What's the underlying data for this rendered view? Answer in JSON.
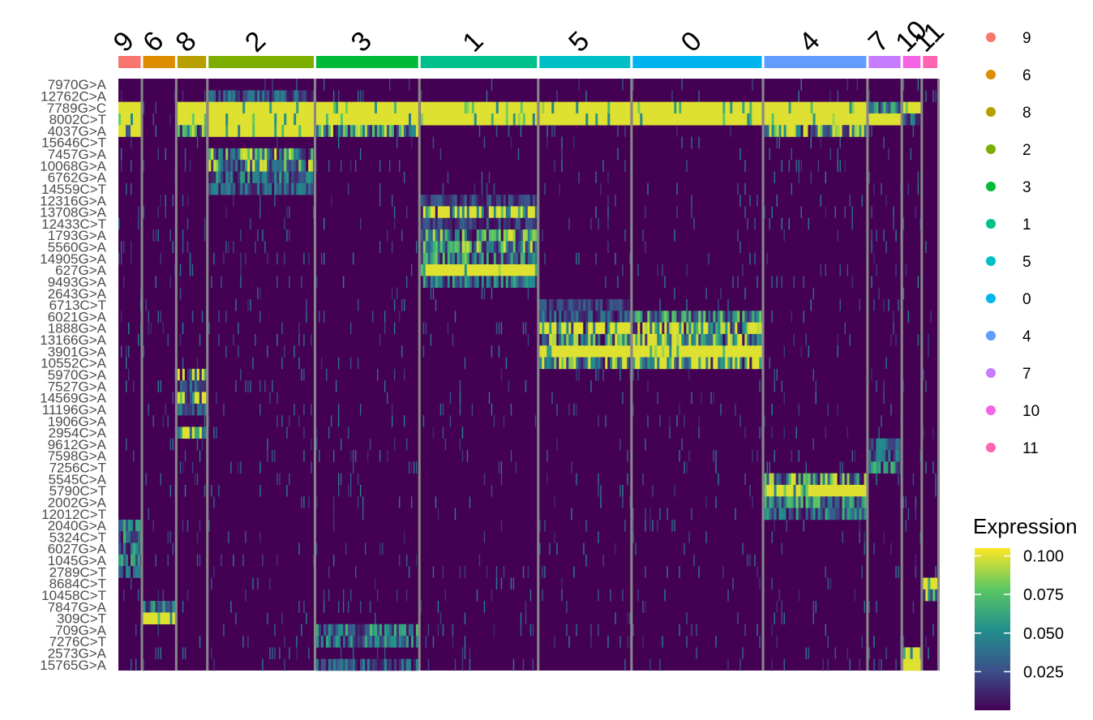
{
  "chart_data": {
    "type": "heatmap",
    "title": "",
    "xlabel": "",
    "ylabel": "",
    "clusters": [
      {
        "id": "9",
        "color": "#F8766D",
        "n": 28
      },
      {
        "id": "6",
        "color": "#DE8C00",
        "n": 40
      },
      {
        "id": "8",
        "color": "#B79F00",
        "n": 36
      },
      {
        "id": "2",
        "color": "#7CAE00",
        "n": 132
      },
      {
        "id": "3",
        "color": "#00BA38",
        "n": 128
      },
      {
        "id": "1",
        "color": "#00C08B",
        "n": 146
      },
      {
        "id": "5",
        "color": "#00BFC4",
        "n": 114
      },
      {
        "id": "0",
        "color": "#00B4F0",
        "n": 162
      },
      {
        "id": "4",
        "color": "#619CFF",
        "n": 128
      },
      {
        "id": "7",
        "color": "#C77CFF",
        "n": 40
      },
      {
        "id": "10",
        "color": "#F564E3",
        "n": 22
      },
      {
        "id": "11",
        "color": "#FF64B0",
        "n": 18
      }
    ],
    "features": [
      "7970G>A",
      "12762C>A",
      "7789G>C",
      "8002C>T",
      "4037G>A",
      "15646C>T",
      "7457G>A",
      "10068G>A",
      "6762G>A",
      "14559C>T",
      "12316G>A",
      "13708G>A",
      "12433C>T",
      "1793G>A",
      "5560G>A",
      "14905G>A",
      "627G>A",
      "9493G>A",
      "2643G>A",
      "6713C>T",
      "6021G>A",
      "1888G>A",
      "13166G>A",
      "3901G>A",
      "10552C>A",
      "5970G>A",
      "7527G>A",
      "14569G>A",
      "11196G>A",
      "1906G>A",
      "2954C>A",
      "9612G>A",
      "7598G>A",
      "7256C>T",
      "5545C>A",
      "5790C>T",
      "2002G>A",
      "12012C>T",
      "2040G>A",
      "5324C>T",
      "6027G>A",
      "1045G>A",
      "2789C>T",
      "8684C>T",
      "10458C>T",
      "7847G>A",
      "309C>T",
      "709G>A",
      "7276C>T",
      "2573G>A",
      "15765G>A"
    ],
    "blocks": [
      {
        "row": 2,
        "cluster": "9",
        "level": 0.1
      },
      {
        "row": 3,
        "cluster": "9",
        "level": 0.1
      },
      {
        "row": 4,
        "cluster": "9",
        "level": 0.09
      },
      {
        "row": 38,
        "cluster": "9",
        "level": 0.04
      },
      {
        "row": 39,
        "cluster": "9",
        "level": 0.05
      },
      {
        "row": 40,
        "cluster": "9",
        "level": 0.04
      },
      {
        "row": 41,
        "cluster": "9",
        "level": 0.04
      },
      {
        "row": 42,
        "cluster": "9",
        "level": 0.03
      },
      {
        "row": 45,
        "cluster": "6",
        "level": 0.04
      },
      {
        "row": 46,
        "cluster": "6",
        "level": 0.1
      },
      {
        "row": 2,
        "cluster": "8",
        "level": 0.1
      },
      {
        "row": 3,
        "cluster": "8",
        "level": 0.1
      },
      {
        "row": 4,
        "cluster": "8",
        "level": 0.06
      },
      {
        "row": 25,
        "cluster": "8",
        "level": 0.09
      },
      {
        "row": 26,
        "cluster": "8",
        "level": 0.03
      },
      {
        "row": 27,
        "cluster": "8",
        "level": 0.09
      },
      {
        "row": 28,
        "cluster": "8",
        "level": 0.03
      },
      {
        "row": 30,
        "cluster": "8",
        "level": 0.09
      },
      {
        "row": 1,
        "cluster": "2",
        "level": 0.03
      },
      {
        "row": 2,
        "cluster": "2",
        "level": 0.1
      },
      {
        "row": 3,
        "cluster": "2",
        "level": 0.1
      },
      {
        "row": 4,
        "cluster": "2",
        "level": 0.1
      },
      {
        "row": 6,
        "cluster": "2",
        "level": 0.06
      },
      {
        "row": 7,
        "cluster": "2",
        "level": 0.07
      },
      {
        "row": 8,
        "cluster": "2",
        "level": 0.04
      },
      {
        "row": 9,
        "cluster": "2",
        "level": 0.03
      },
      {
        "row": 2,
        "cluster": "3",
        "level": 0.1
      },
      {
        "row": 3,
        "cluster": "3",
        "level": 0.1
      },
      {
        "row": 4,
        "cluster": "3",
        "level": 0.06
      },
      {
        "row": 47,
        "cluster": "3",
        "level": 0.045
      },
      {
        "row": 48,
        "cluster": "3",
        "level": 0.04
      },
      {
        "row": 50,
        "cluster": "3",
        "level": 0.03
      },
      {
        "row": 2,
        "cluster": "1",
        "level": 0.1
      },
      {
        "row": 3,
        "cluster": "1",
        "level": 0.1
      },
      {
        "row": 10,
        "cluster": "1",
        "level": 0.02
      },
      {
        "row": 11,
        "cluster": "1",
        "level": 0.09
      },
      {
        "row": 12,
        "cluster": "1",
        "level": 0.02
      },
      {
        "row": 13,
        "cluster": "1",
        "level": 0.06
      },
      {
        "row": 14,
        "cluster": "1",
        "level": 0.06
      },
      {
        "row": 15,
        "cluster": "1",
        "level": 0.05
      },
      {
        "row": 16,
        "cluster": "1",
        "level": 0.1
      },
      {
        "row": 17,
        "cluster": "1",
        "level": 0.04
      },
      {
        "row": 2,
        "cluster": "5",
        "level": 0.1
      },
      {
        "row": 3,
        "cluster": "5",
        "level": 0.1
      },
      {
        "row": 19,
        "cluster": "5",
        "level": 0.02
      },
      {
        "row": 20,
        "cluster": "5",
        "level": 0.03
      },
      {
        "row": 21,
        "cluster": "5",
        "level": 0.09
      },
      {
        "row": 22,
        "cluster": "5",
        "level": 0.06
      },
      {
        "row": 23,
        "cluster": "5",
        "level": 0.1
      },
      {
        "row": 24,
        "cluster": "5",
        "level": 0.07
      },
      {
        "row": 2,
        "cluster": "0",
        "level": 0.1
      },
      {
        "row": 3,
        "cluster": "0",
        "level": 0.1
      },
      {
        "row": 20,
        "cluster": "0",
        "level": 0.05
      },
      {
        "row": 21,
        "cluster": "0",
        "level": 0.08
      },
      {
        "row": 22,
        "cluster": "0",
        "level": 0.08
      },
      {
        "row": 23,
        "cluster": "0",
        "level": 0.1
      },
      {
        "row": 24,
        "cluster": "0",
        "level": 0.09
      },
      {
        "row": 2,
        "cluster": "4",
        "level": 0.1
      },
      {
        "row": 3,
        "cluster": "4",
        "level": 0.1
      },
      {
        "row": 4,
        "cluster": "4",
        "level": 0.07
      },
      {
        "row": 34,
        "cluster": "4",
        "level": 0.06
      },
      {
        "row": 35,
        "cluster": "4",
        "level": 0.1
      },
      {
        "row": 36,
        "cluster": "4",
        "level": 0.05
      },
      {
        "row": 37,
        "cluster": "4",
        "level": 0.04
      },
      {
        "row": 2,
        "cluster": "7",
        "level": 0.05
      },
      {
        "row": 3,
        "cluster": "7",
        "level": 0.1
      },
      {
        "row": 31,
        "cluster": "7",
        "level": 0.03
      },
      {
        "row": 32,
        "cluster": "7",
        "level": 0.03
      },
      {
        "row": 33,
        "cluster": "7",
        "level": 0.05
      },
      {
        "row": 2,
        "cluster": "10",
        "level": 0.1
      },
      {
        "row": 3,
        "cluster": "10",
        "level": 0.03
      },
      {
        "row": 49,
        "cluster": "10",
        "level": 0.07
      },
      {
        "row": 50,
        "cluster": "10",
        "level": 0.1
      },
      {
        "row": 43,
        "cluster": "11",
        "level": 0.1
      },
      {
        "row": 44,
        "cluster": "11",
        "level": 0.07
      }
    ],
    "legend": {
      "clusters_order": [
        "9",
        "6",
        "8",
        "2",
        "3",
        "1",
        "5",
        "0",
        "4",
        "7",
        "10",
        "11"
      ],
      "title": "Expression",
      "scale_range": [
        0.0,
        0.105
      ],
      "ticks": [
        "0.100",
        "0.075",
        "0.050",
        "0.025"
      ],
      "tick_values": [
        0.1,
        0.075,
        0.05,
        0.025
      ],
      "colors": [
        "#440154",
        "#3B528B",
        "#21908C",
        "#5DC863",
        "#FDE725"
      ],
      "placement": "right"
    },
    "grid": false
  }
}
